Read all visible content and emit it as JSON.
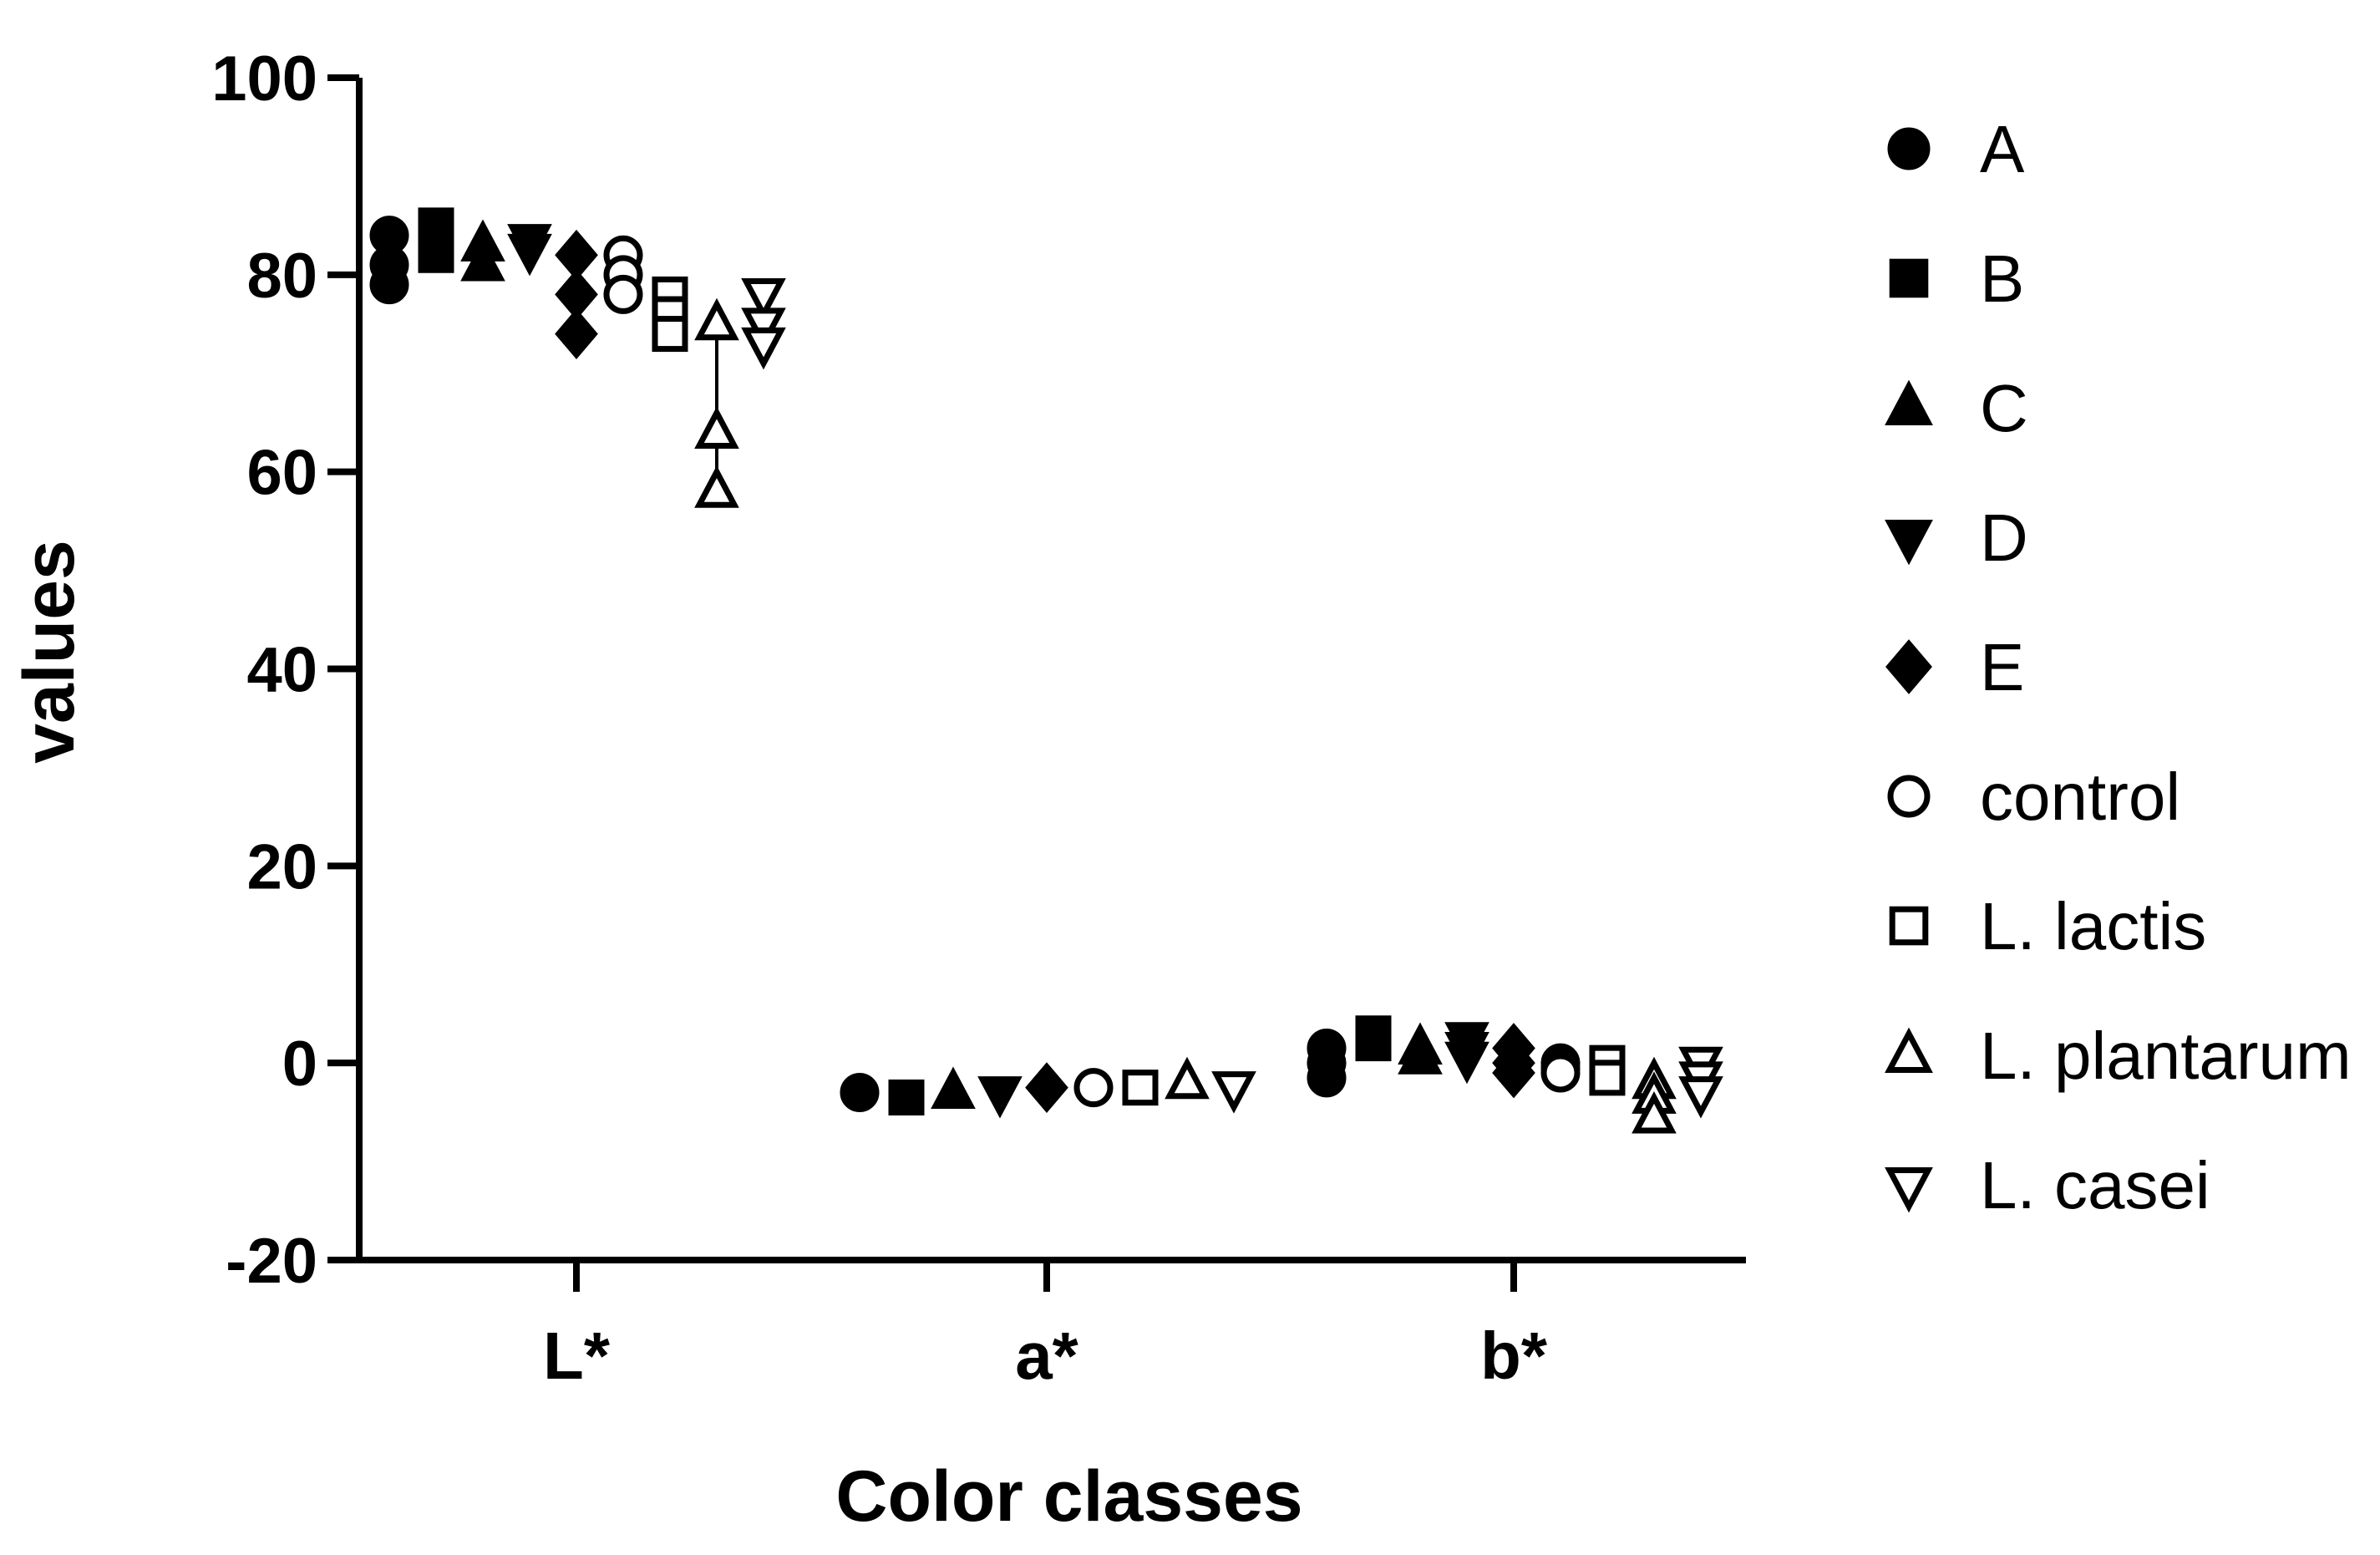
{
  "chart_data": {
    "type": "scatter",
    "xlabel": "Color classes",
    "ylabel": "values",
    "ylim": [
      -20,
      100
    ],
    "yticks": [
      -20,
      0,
      20,
      40,
      60,
      80,
      100
    ],
    "categories": [
      "L*",
      "a*",
      "b*"
    ],
    "legend_position": "right",
    "grid": false,
    "series": [
      {
        "name": "A",
        "marker": "circle-filled",
        "points": [
          {
            "category": "L*",
            "values": [
              84,
              81,
              79
            ]
          },
          {
            "category": "a*",
            "values": [
              -3
            ]
          },
          {
            "category": "b*",
            "values": [
              1.5,
              0,
              -1.5
            ]
          }
        ]
      },
      {
        "name": "B",
        "marker": "square-filled",
        "points": [
          {
            "category": "L*",
            "values": [
              85,
              83.5,
              82
            ]
          },
          {
            "category": "a*",
            "values": [
              -3.5
            ]
          },
          {
            "category": "b*",
            "values": [
              3,
              2
            ]
          }
        ]
      },
      {
        "name": "C",
        "marker": "triangle-up-filled",
        "points": [
          {
            "category": "L*",
            "values": [
              83,
              81
            ]
          },
          {
            "category": "a*",
            "values": [
              -3
            ]
          },
          {
            "category": "b*",
            "values": [
              1.5,
              0.5
            ]
          }
        ]
      },
      {
        "name": "D",
        "marker": "triangle-down-filled",
        "points": [
          {
            "category": "L*",
            "values": [
              83.5,
              82.5
            ]
          },
          {
            "category": "a*",
            "values": [
              -3
            ]
          },
          {
            "category": "b*",
            "values": [
              2.5,
              1.5,
              0.5
            ]
          }
        ]
      },
      {
        "name": "E",
        "marker": "diamond-filled",
        "points": [
          {
            "category": "L*",
            "values": [
              82,
              78,
              74
            ]
          },
          {
            "category": "a*",
            "values": [
              -2.5
            ]
          },
          {
            "category": "b*",
            "values": [
              1.5,
              0,
              -1
            ]
          }
        ]
      },
      {
        "name": "control",
        "marker": "circle-open",
        "points": [
          {
            "category": "L*",
            "values": [
              82,
              80,
              78
            ]
          },
          {
            "category": "a*",
            "values": [
              -2.5
            ]
          },
          {
            "category": "b*",
            "values": [
              0,
              -0.5,
              -1
            ]
          }
        ]
      },
      {
        "name": "L. lactis",
        "marker": "square-open",
        "points": [
          {
            "category": "L*",
            "values": [
              78,
              76,
              74
            ]
          },
          {
            "category": "a*",
            "values": [
              -2.5
            ]
          },
          {
            "category": "b*",
            "values": [
              0,
              -1.5
            ]
          }
        ]
      },
      {
        "name": "L. plantarum",
        "marker": "triangle-up-open",
        "points": [
          {
            "category": "L*",
            "values": [
              75,
              64,
              58
            ]
          },
          {
            "category": "a*",
            "values": [
              -2
            ]
          },
          {
            "category": "b*",
            "values": [
              -2,
              -3.5,
              -5.5
            ]
          }
        ]
      },
      {
        "name": "L. casei",
        "marker": "triangle-down-open",
        "points": [
          {
            "category": "L*",
            "values": [
              78,
              75,
              73
            ]
          },
          {
            "category": "a*",
            "values": [
              -2.5
            ]
          },
          {
            "category": "b*",
            "values": [
              0,
              -1.5,
              -3
            ]
          }
        ]
      }
    ]
  }
}
